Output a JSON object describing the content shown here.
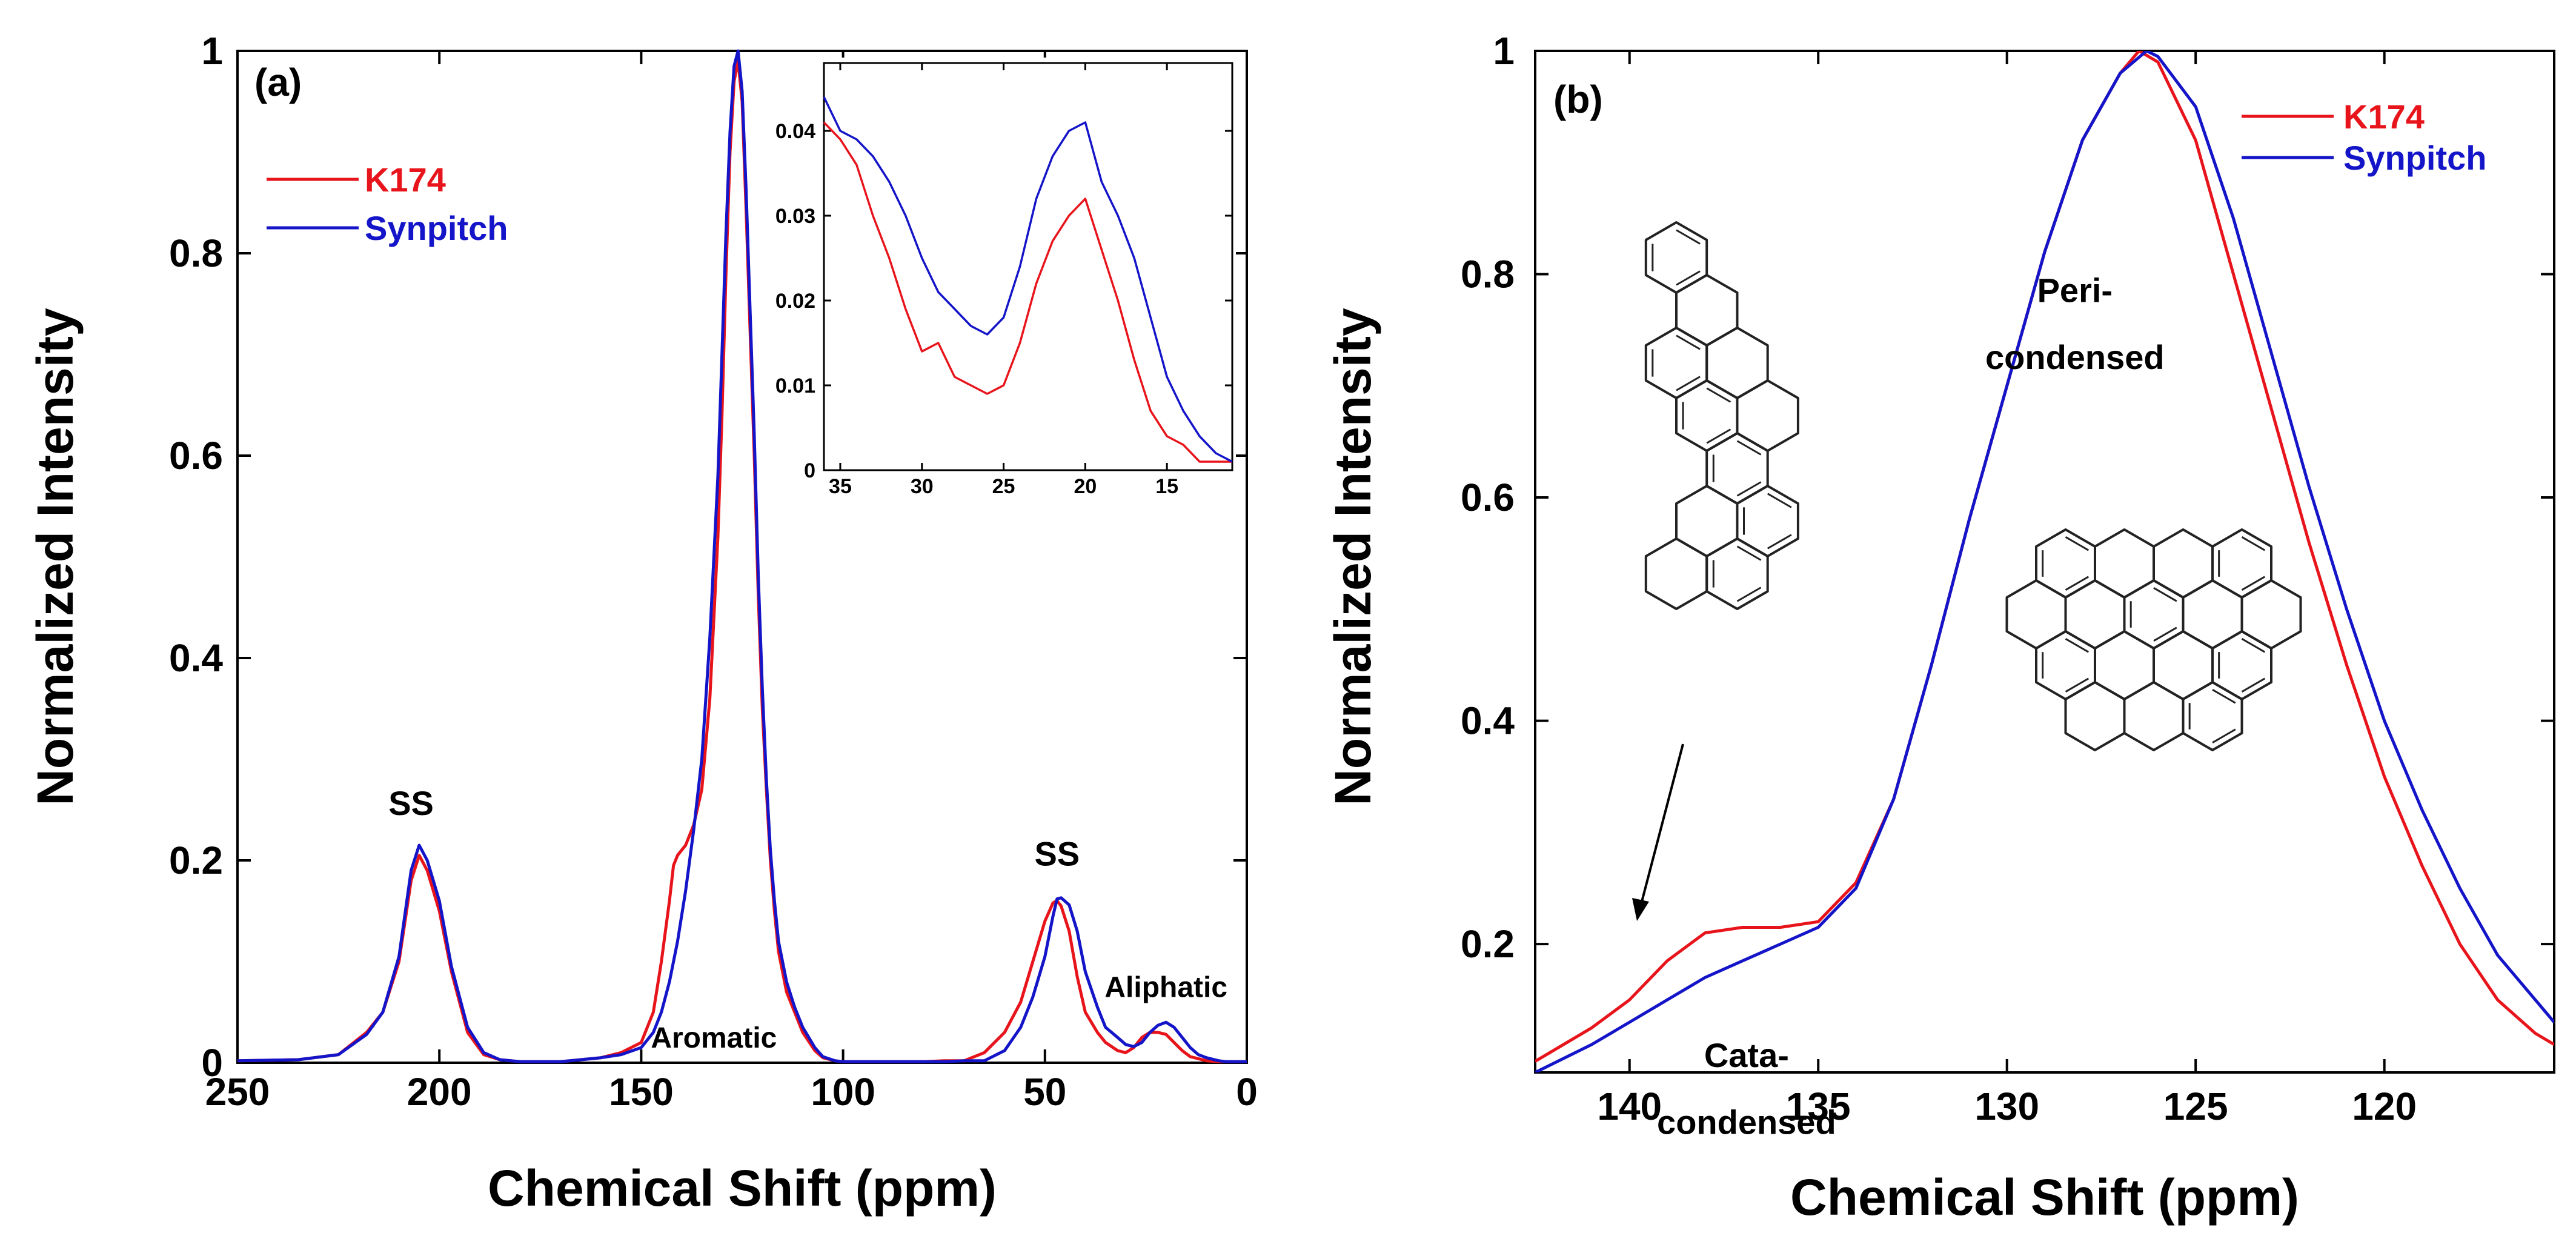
{
  "colors": {
    "k174": "#e8141b",
    "synpitch": "#1414c8",
    "text": "#000000"
  },
  "chart_data": [
    {
      "panel": "(a)",
      "type": "line",
      "xlabel": "Chemical Shift (ppm)",
      "ylabel": "Normalized Intensity",
      "xlim": [
        250,
        0
      ],
      "ylim": [
        0,
        1
      ],
      "xticks": [
        250,
        200,
        150,
        100,
        50,
        0
      ],
      "yticks": [
        0,
        0.2,
        0.4,
        0.6,
        0.8,
        1
      ],
      "ytick_labels": [
        "0",
        "0.2",
        "0.4",
        "0.6",
        "0.8",
        "1"
      ],
      "legend": [
        "K174",
        "Synpitch"
      ],
      "annotations": [
        {
          "text": "SS",
          "x": 207,
          "y": 0.245
        },
        {
          "text": "SS",
          "x": 47,
          "y": 0.195
        },
        {
          "text": "Aromatic",
          "x": 132,
          "y": 0.015
        },
        {
          "text": "Aliphatic",
          "x": 20,
          "y": 0.065
        }
      ],
      "series": [
        {
          "name": "K174",
          "color": "#e8141b",
          "x": [
            250,
            235,
            225,
            218,
            214,
            210,
            207,
            205,
            203,
            200,
            197,
            193,
            189,
            185,
            180,
            170,
            160,
            155,
            150,
            147,
            145,
            143,
            142,
            141,
            140,
            139,
            137,
            135,
            133,
            131,
            130,
            129,
            128,
            127,
            126,
            125,
            124,
            123,
            122,
            121,
            120,
            119,
            118,
            117,
            116,
            114,
            112,
            110,
            107,
            105,
            102,
            100,
            95,
            90,
            85,
            80,
            75,
            70,
            65,
            60,
            56,
            53,
            50,
            48,
            47,
            46,
            44,
            42,
            40,
            37,
            35,
            32,
            30,
            28,
            26,
            24,
            22,
            20,
            18,
            16,
            14,
            12,
            10,
            7,
            5,
            2,
            0
          ],
          "y": [
            0.002,
            0.003,
            0.008,
            0.03,
            0.05,
            0.1,
            0.18,
            0.205,
            0.19,
            0.15,
            0.09,
            0.03,
            0.008,
            0.003,
            0.001,
            0.001,
            0.005,
            0.01,
            0.02,
            0.05,
            0.1,
            0.16,
            0.195,
            0.205,
            0.21,
            0.215,
            0.235,
            0.27,
            0.36,
            0.52,
            0.64,
            0.78,
            0.9,
            0.97,
            0.99,
            0.95,
            0.84,
            0.72,
            0.6,
            0.46,
            0.35,
            0.27,
            0.2,
            0.15,
            0.11,
            0.07,
            0.05,
            0.03,
            0.012,
            0.005,
            0.002,
            0.001,
            0.001,
            0.001,
            0.001,
            0.001,
            0.002,
            0.002,
            0.01,
            0.03,
            0.06,
            0.1,
            0.14,
            0.158,
            0.16,
            0.155,
            0.13,
            0.085,
            0.05,
            0.03,
            0.02,
            0.012,
            0.01,
            0.015,
            0.025,
            0.03,
            0.03,
            0.028,
            0.02,
            0.012,
            0.006,
            0.004,
            0.002,
            0.001,
            0.001,
            0.001,
            0.001
          ]
        },
        {
          "name": "Synpitch",
          "color": "#1414c8",
          "x": [
            250,
            235,
            225,
            218,
            214,
            210,
            207,
            205,
            203,
            200,
            197,
            193,
            189,
            185,
            180,
            170,
            160,
            155,
            150,
            147,
            145,
            143,
            141,
            139,
            137,
            135,
            133,
            131,
            130,
            129,
            128,
            127,
            126,
            125,
            124,
            123,
            122,
            121,
            120,
            119,
            118,
            117,
            116,
            114,
            112,
            110,
            107,
            105,
            102,
            100,
            95,
            90,
            85,
            80,
            75,
            70,
            65,
            60,
            56,
            53,
            50,
            48,
            47,
            46,
            44,
            42,
            40,
            37,
            35,
            32,
            30,
            28,
            26,
            24,
            22,
            20,
            18,
            16,
            14,
            12,
            10,
            7,
            5,
            2,
            0
          ],
          "y": [
            0.002,
            0.003,
            0.008,
            0.028,
            0.05,
            0.105,
            0.19,
            0.215,
            0.2,
            0.16,
            0.095,
            0.035,
            0.01,
            0.003,
            0.001,
            0.001,
            0.005,
            0.008,
            0.015,
            0.03,
            0.05,
            0.08,
            0.12,
            0.17,
            0.23,
            0.3,
            0.42,
            0.58,
            0.7,
            0.82,
            0.92,
            0.985,
            1.0,
            0.96,
            0.86,
            0.74,
            0.62,
            0.48,
            0.37,
            0.28,
            0.21,
            0.16,
            0.12,
            0.08,
            0.055,
            0.035,
            0.015,
            0.006,
            0.002,
            0.001,
            0.001,
            0.001,
            0.001,
            0.001,
            0.001,
            0.002,
            0.002,
            0.012,
            0.035,
            0.065,
            0.105,
            0.145,
            0.162,
            0.163,
            0.156,
            0.13,
            0.09,
            0.055,
            0.035,
            0.025,
            0.018,
            0.016,
            0.02,
            0.03,
            0.037,
            0.04,
            0.035,
            0.025,
            0.015,
            0.008,
            0.005,
            0.002,
            0.001,
            0.001,
            0.001
          ]
        }
      ],
      "inset": {
        "xlim": [
          36,
          11
        ],
        "ylim": [
          0,
          0.048
        ],
        "xticks": [
          35,
          30,
          25,
          20,
          15
        ],
        "yticks": [
          0,
          0.01,
          0.02,
          0.03,
          0.04
        ],
        "ytick_labels": [
          "0",
          "0.01",
          "0.02",
          "0.03",
          "0.04"
        ],
        "series": [
          {
            "name": "K174",
            "color": "#e8141b",
            "x": [
              36,
              35,
              34,
              33,
              32,
              31,
              30,
              29,
              28,
              27,
              26,
              25,
              24,
              23,
              22,
              21,
              20,
              19,
              18,
              17,
              16,
              15,
              14,
              13,
              12,
              11
            ],
            "y": [
              0.041,
              0.039,
              0.036,
              0.03,
              0.025,
              0.019,
              0.014,
              0.015,
              0.011,
              0.01,
              0.009,
              0.01,
              0.015,
              0.022,
              0.027,
              0.03,
              0.032,
              0.026,
              0.02,
              0.013,
              0.007,
              0.004,
              0.003,
              0.001,
              0.001,
              0.001
            ]
          },
          {
            "name": "Synpitch",
            "color": "#1414c8",
            "x": [
              36,
              35,
              34,
              33,
              32,
              31,
              30,
              29,
              28,
              27,
              26,
              25,
              24,
              23,
              22,
              21,
              20,
              19,
              18,
              17,
              16,
              15,
              14,
              13,
              12,
              11
            ],
            "y": [
              0.044,
              0.04,
              0.039,
              0.037,
              0.034,
              0.03,
              0.025,
              0.021,
              0.019,
              0.017,
              0.016,
              0.018,
              0.024,
              0.032,
              0.037,
              0.04,
              0.041,
              0.034,
              0.03,
              0.025,
              0.018,
              0.011,
              0.007,
              0.004,
              0.002,
              0.001
            ]
          }
        ]
      }
    },
    {
      "panel": "(b)",
      "type": "line",
      "xlabel": "Chemical Shift (ppm)",
      "ylabel": "Normalized Intensity",
      "xlim": [
        142.5,
        115.5
      ],
      "ylim": [
        0.085,
        1
      ],
      "xticks": [
        140,
        135,
        130,
        125,
        120
      ],
      "yticks": [
        0.2,
        0.4,
        0.6,
        0.8,
        1
      ],
      "ytick_labels": [
        "0.2",
        "0.4",
        "0.6",
        "0.8",
        "1"
      ],
      "legend": [
        "K174",
        "Synpitch"
      ],
      "annotations": [
        {
          "text": "Peri-",
          "x": 128.2,
          "y": 0.775
        },
        {
          "text": "condensed",
          "x": 128.2,
          "y": 0.715
        },
        {
          "text": "Cata-",
          "x": 136.9,
          "y": 0.09
        },
        {
          "text": "condensed",
          "x": 136.9,
          "y": 0.03
        }
      ],
      "series": [
        {
          "name": "K174",
          "color": "#e8141b",
          "x": [
            142.5,
            141,
            140,
            139,
            138,
            137,
            136,
            135,
            134,
            133,
            132,
            131,
            130,
            129,
            128,
            127,
            126.5,
            126,
            125,
            124,
            123,
            122,
            121,
            120,
            119,
            118,
            117,
            116,
            115.5
          ],
          "y": [
            0.095,
            0.125,
            0.15,
            0.185,
            0.21,
            0.215,
            0.215,
            0.22,
            0.255,
            0.33,
            0.45,
            0.58,
            0.7,
            0.82,
            0.92,
            0.98,
            1.0,
            0.99,
            0.92,
            0.8,
            0.68,
            0.56,
            0.45,
            0.35,
            0.27,
            0.2,
            0.15,
            0.12,
            0.11
          ]
        },
        {
          "name": "Synpitch",
          "color": "#1414c8",
          "x": [
            142.5,
            141,
            140,
            139,
            138,
            137,
            136,
            135,
            134,
            133,
            132,
            131,
            130,
            129,
            128,
            127,
            126.3,
            126,
            125,
            124,
            123,
            122,
            121,
            120,
            119,
            118,
            117,
            116,
            115.5
          ],
          "y": [
            0.085,
            0.11,
            0.13,
            0.15,
            0.17,
            0.185,
            0.2,
            0.215,
            0.25,
            0.33,
            0.45,
            0.58,
            0.7,
            0.82,
            0.92,
            0.98,
            1.0,
            0.995,
            0.95,
            0.85,
            0.73,
            0.61,
            0.5,
            0.4,
            0.32,
            0.25,
            0.19,
            0.15,
            0.13
          ]
        }
      ]
    }
  ]
}
